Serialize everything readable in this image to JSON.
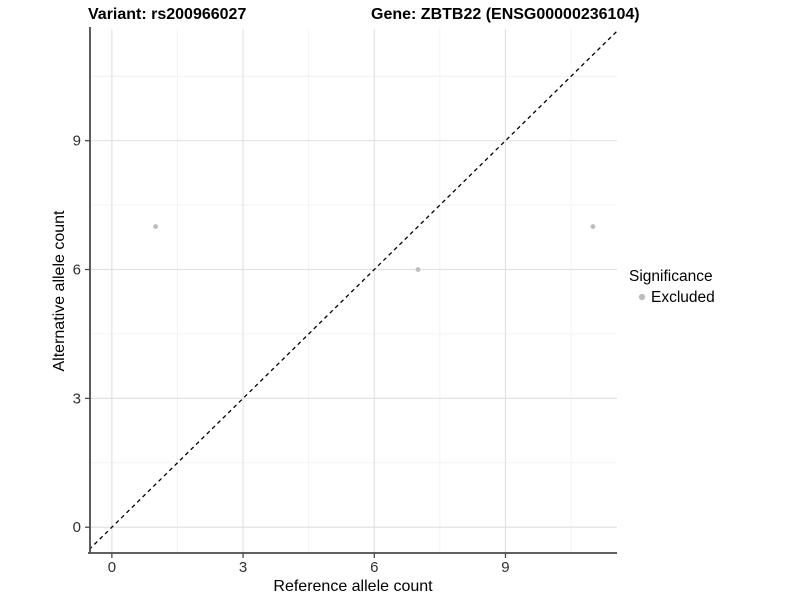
{
  "title": {
    "variant": "Variant: rs200966027",
    "gene": "Gene: ZBTB22 (ENSG00000236104)"
  },
  "chart_data": {
    "type": "scatter",
    "title": "Variant: rs200966027   Gene: ZBTB22 (ENSG00000236104)",
    "xlabel": "Reference allele count",
    "ylabel": "Alternative allele count",
    "xlim": [
      -0.5,
      11.55
    ],
    "ylim": [
      -0.6,
      11.6
    ],
    "x_ticks": [
      0,
      3,
      6,
      9
    ],
    "y_ticks": [
      0,
      3,
      6,
      9
    ],
    "minor_ticks": [
      1.5,
      4.5,
      7.5,
      10.5
    ],
    "grid": true,
    "series": [
      {
        "name": "Excluded",
        "color": "#bdbdbd",
        "points": [
          {
            "x": 1,
            "y": 7
          },
          {
            "x": 7,
            "y": 6
          },
          {
            "x": 11,
            "y": 7
          }
        ]
      }
    ],
    "reference_line": {
      "type": "identity",
      "style": "dashed",
      "color": "#000000"
    },
    "legend": {
      "title": "Significance",
      "position": "right",
      "entries": [
        {
          "label": "Excluded",
          "color": "#bdbdbd"
        }
      ]
    }
  },
  "colors": {
    "background": "#ffffff",
    "grid_major": "#e2e2e2",
    "grid_minor": "#f0f0f0",
    "axis_line": "#4a4a4a",
    "point": "#bdbdbd"
  }
}
